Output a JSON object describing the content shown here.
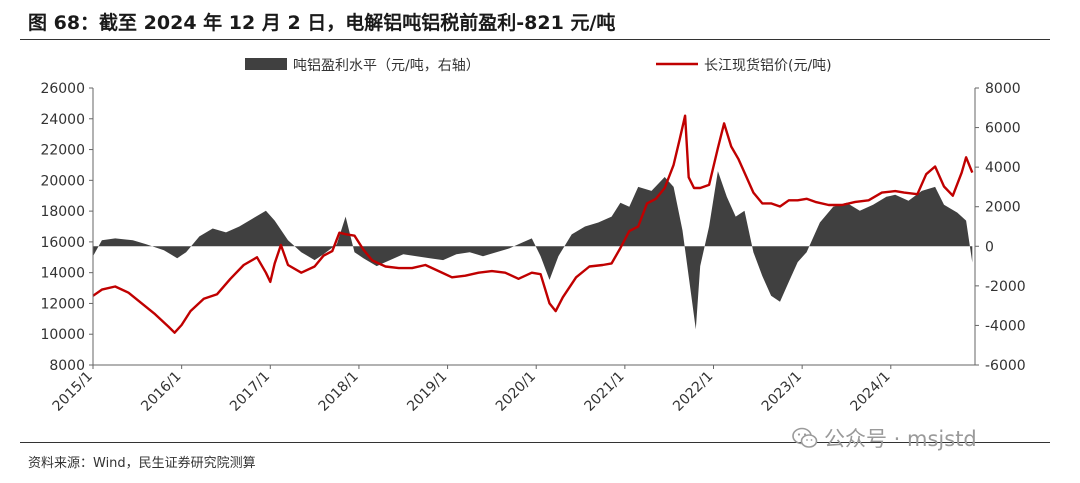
{
  "header": {
    "title": "图 68：截至 2024 年 12 月 2 日，电解铝吨铝税前盈利-821 元/吨"
  },
  "footer": {
    "source": "资料来源：Wind，民生证券研究院测算",
    "watermark": "公众号 · msjstd"
  },
  "colors": {
    "bar": "#404040",
    "line": "#c00000"
  },
  "chart_data": {
    "type": "area",
    "title": "",
    "legend_position": "top",
    "grid": false,
    "x_ticks": [
      "2015/1",
      "2016/1",
      "2017/1",
      "2018/1",
      "2019/1",
      "2020/1",
      "2021/1",
      "2022/1",
      "2023/1",
      "2024/1"
    ],
    "x_range": [
      "2015-01",
      "2024-12"
    ],
    "y_left": {
      "label": "",
      "range": [
        8000,
        26000
      ],
      "ticks": [
        "26000",
        "24000",
        "22000",
        "20000",
        "18000",
        "16000",
        "14000",
        "12000",
        "10000",
        "8000"
      ]
    },
    "y_right": {
      "label": "",
      "range": [
        -6000,
        8000
      ],
      "ticks": [
        "8000",
        "6000",
        "4000",
        "2000",
        "0",
        "-2000",
        "-4000",
        "-6000"
      ]
    },
    "series": [
      {
        "name": "吨铝盈利水平（元/吨，右轴）",
        "type": "area",
        "axis": "right",
        "x": [
          2015.0,
          2015.1,
          2015.25,
          2015.45,
          2015.6,
          2015.8,
          2015.95,
          2016.05,
          2016.2,
          2016.35,
          2016.5,
          2016.65,
          2016.8,
          2016.95,
          2017.05,
          2017.2,
          2017.35,
          2017.5,
          2017.6,
          2017.75,
          2017.85,
          2017.95,
          2018.05,
          2018.2,
          2018.35,
          2018.5,
          2018.65,
          2018.8,
          2018.95,
          2019.1,
          2019.25,
          2019.4,
          2019.55,
          2019.7,
          2019.85,
          2019.95,
          2020.05,
          2020.15,
          2020.25,
          2020.4,
          2020.55,
          2020.7,
          2020.85,
          2020.95,
          2021.05,
          2021.15,
          2021.3,
          2021.45,
          2021.55,
          2021.65,
          2021.75,
          2021.8,
          2021.85,
          2021.95,
          2022.05,
          2022.15,
          2022.25,
          2022.35,
          2022.45,
          2022.55,
          2022.65,
          2022.75,
          2022.85,
          2022.95,
          2023.05,
          2023.2,
          2023.35,
          2023.5,
          2023.65,
          2023.8,
          2023.95,
          2024.05,
          2024.2,
          2024.35,
          2024.5,
          2024.6,
          2024.75,
          2024.85,
          2024.92
        ],
        "y": [
          -500,
          300,
          400,
          300,
          100,
          -200,
          -600,
          -300,
          500,
          900,
          700,
          1000,
          1400,
          1800,
          1300,
          300,
          -300,
          -700,
          -400,
          100,
          1500,
          -300,
          -600,
          -1000,
          -700,
          -400,
          -500,
          -600,
          -700,
          -400,
          -300,
          -500,
          -300,
          -100,
          200,
          400,
          -500,
          -1700,
          -500,
          600,
          1000,
          1200,
          1500,
          2200,
          2000,
          3000,
          2800,
          3500,
          3000,
          800,
          -2500,
          -4200,
          -1000,
          1000,
          3800,
          2500,
          1500,
          1800,
          -300,
          -1500,
          -2500,
          -2800,
          -1800,
          -800,
          -300,
          1200,
          2000,
          2200,
          1800,
          2100,
          2500,
          2600,
          2300,
          2800,
          3000,
          2100,
          1700,
          1300,
          -821
        ]
      },
      {
        "name": "长江现货铝价(元/吨)",
        "type": "line",
        "axis": "left",
        "x": [
          2015.0,
          2015.1,
          2015.25,
          2015.4,
          2015.55,
          2015.7,
          2015.85,
          2015.92,
          2016.0,
          2016.1,
          2016.25,
          2016.4,
          2016.55,
          2016.7,
          2016.85,
          2016.95,
          2017.0,
          2017.05,
          2017.12,
          2017.2,
          2017.35,
          2017.5,
          2017.6,
          2017.7,
          2017.78,
          2017.85,
          2017.95,
          2018.05,
          2018.15,
          2018.3,
          2018.45,
          2018.6,
          2018.75,
          2018.9,
          2019.05,
          2019.2,
          2019.35,
          2019.5,
          2019.65,
          2019.8,
          2019.95,
          2020.05,
          2020.15,
          2020.22,
          2020.3,
          2020.45,
          2020.6,
          2020.75,
          2020.85,
          2020.95,
          2021.05,
          2021.15,
          2021.25,
          2021.35,
          2021.45,
          2021.55,
          2021.62,
          2021.68,
          2021.72,
          2021.78,
          2021.85,
          2021.95,
          2022.05,
          2022.12,
          2022.2,
          2022.28,
          2022.35,
          2022.45,
          2022.55,
          2022.65,
          2022.75,
          2022.85,
          2022.95,
          2023.05,
          2023.15,
          2023.3,
          2023.45,
          2023.6,
          2023.75,
          2023.9,
          2024.05,
          2024.15,
          2024.3,
          2024.4,
          2024.5,
          2024.6,
          2024.7,
          2024.8,
          2024.85,
          2024.92
        ],
        "y": [
          12500,
          12900,
          13100,
          12700,
          12000,
          11300,
          10500,
          10100,
          10600,
          11500,
          12300,
          12600,
          13600,
          14500,
          15000,
          14000,
          13400,
          14600,
          15800,
          14500,
          14000,
          14400,
          15100,
          15400,
          16600,
          16500,
          16400,
          15500,
          14800,
          14400,
          14300,
          14300,
          14500,
          14100,
          13700,
          13800,
          14000,
          14100,
          14000,
          13600,
          14000,
          13900,
          12000,
          11500,
          12400,
          13700,
          14400,
          14500,
          14600,
          15600,
          16700,
          17000,
          18500,
          18800,
          19500,
          21000,
          22700,
          24200,
          20200,
          19500,
          19500,
          19700,
          22100,
          23700,
          22200,
          21400,
          20500,
          19200,
          18500,
          18500,
          18300,
          18700,
          18700,
          18800,
          18600,
          18400,
          18400,
          18600,
          18700,
          19200,
          19300,
          19200,
          19100,
          20400,
          20900,
          19600,
          19000,
          20500,
          21500,
          20500
        ]
      }
    ]
  }
}
